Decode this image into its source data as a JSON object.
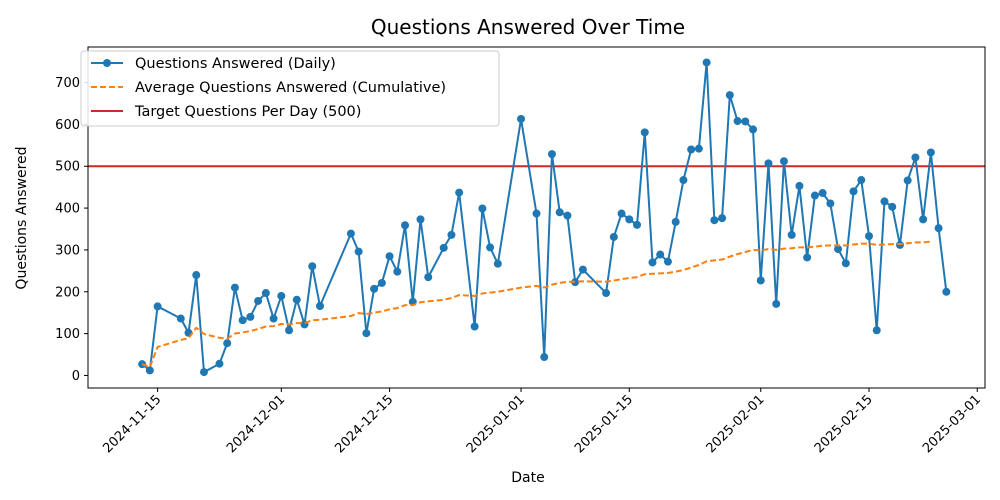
{
  "chart_data": {
    "type": "line",
    "title": "Questions Answered Over Time",
    "xlabel": "Date",
    "ylabel": "Questions Answered",
    "x_range": [
      "2024-11-06",
      "2025-03-02"
    ],
    "ylim": [
      -30,
      785
    ],
    "grid": false,
    "legend_position": "upper-left",
    "x_ticks": [
      "2024-11-15",
      "2024-12-01",
      "2024-12-15",
      "2025-01-01",
      "2025-01-15",
      "2025-02-01",
      "2025-02-15",
      "2025-03-01"
    ],
    "y_ticks": [
      0,
      100,
      200,
      300,
      400,
      500,
      600,
      700
    ],
    "series": [
      {
        "name": "Questions Answered (Daily)",
        "color": "#1f77b4",
        "style": "line-with-markers",
        "points": [
          [
            "2024-11-13",
            27
          ],
          [
            "2024-11-14",
            12
          ],
          [
            "2024-11-15",
            165
          ],
          [
            "2024-11-18",
            136
          ],
          [
            "2024-11-19",
            102
          ],
          [
            "2024-11-20",
            240
          ],
          [
            "2024-11-21",
            8
          ],
          [
            "2024-11-23",
            28
          ],
          [
            "2024-11-24",
            77
          ],
          [
            "2024-11-25",
            210
          ],
          [
            "2024-11-26",
            132
          ],
          [
            "2024-11-27",
            140
          ],
          [
            "2024-11-28",
            178
          ],
          [
            "2024-11-29",
            197
          ],
          [
            "2024-11-30",
            136
          ],
          [
            "2024-12-01",
            190
          ],
          [
            "2024-12-02",
            108
          ],
          [
            "2024-12-03",
            181
          ],
          [
            "2024-12-04",
            122
          ],
          [
            "2024-12-05",
            261
          ],
          [
            "2024-12-06",
            166
          ],
          [
            "2024-12-10",
            339
          ],
          [
            "2024-12-11",
            296
          ],
          [
            "2024-12-12",
            101
          ],
          [
            "2024-12-13",
            207
          ],
          [
            "2024-12-14",
            221
          ],
          [
            "2024-12-15",
            285
          ],
          [
            "2024-12-16",
            248
          ],
          [
            "2024-12-17",
            359
          ],
          [
            "2024-12-18",
            176
          ],
          [
            "2024-12-19",
            373
          ],
          [
            "2024-12-20",
            235
          ],
          [
            "2024-12-22",
            305
          ],
          [
            "2024-12-23",
            336
          ],
          [
            "2024-12-24",
            437
          ],
          [
            "2024-12-26",
            117
          ],
          [
            "2024-12-27",
            399
          ],
          [
            "2024-12-28",
            306
          ],
          [
            "2024-12-29",
            267
          ],
          [
            "2025-01-01",
            613
          ],
          [
            "2025-01-03",
            387
          ],
          [
            "2025-01-04",
            44
          ],
          [
            "2025-01-05",
            529
          ],
          [
            "2025-01-06",
            390
          ],
          [
            "2025-01-07",
            382
          ],
          [
            "2025-01-08",
            223
          ],
          [
            "2025-01-09",
            253
          ],
          [
            "2025-01-12",
            197
          ],
          [
            "2025-01-13",
            331
          ],
          [
            "2025-01-14",
            387
          ],
          [
            "2025-01-15",
            373
          ],
          [
            "2025-01-16",
            360
          ],
          [
            "2025-01-17",
            581
          ],
          [
            "2025-01-18",
            270
          ],
          [
            "2025-01-19",
            289
          ],
          [
            "2025-01-20",
            272
          ],
          [
            "2025-01-21",
            367
          ],
          [
            "2025-01-22",
            467
          ],
          [
            "2025-01-23",
            540
          ],
          [
            "2025-01-24",
            542
          ],
          [
            "2025-01-25",
            748
          ],
          [
            "2025-01-26",
            371
          ],
          [
            "2025-01-27",
            376
          ],
          [
            "2025-01-28",
            670
          ],
          [
            "2025-01-29",
            608
          ],
          [
            "2025-01-30",
            607
          ],
          [
            "2025-01-31",
            588
          ],
          [
            "2025-02-01",
            227
          ],
          [
            "2025-02-02",
            507
          ],
          [
            "2025-02-03",
            171
          ],
          [
            "2025-02-04",
            512
          ],
          [
            "2025-02-05",
            336
          ],
          [
            "2025-02-06",
            453
          ],
          [
            "2025-02-07",
            282
          ],
          [
            "2025-02-08",
            430
          ],
          [
            "2025-02-09",
            436
          ],
          [
            "2025-02-10",
            411
          ],
          [
            "2025-02-11",
            302
          ],
          [
            "2025-02-12",
            268
          ],
          [
            "2025-02-13",
            440
          ],
          [
            "2025-02-14",
            467
          ],
          [
            "2025-02-15",
            333
          ],
          [
            "2025-02-16",
            108
          ],
          [
            "2025-02-17",
            416
          ],
          [
            "2025-02-18",
            403
          ],
          [
            "2025-02-19",
            312
          ],
          [
            "2025-02-20",
            466
          ],
          [
            "2025-02-21",
            521
          ],
          [
            "2025-02-22",
            373
          ],
          [
            "2025-02-23",
            533
          ],
          [
            "2025-02-24",
            352
          ],
          [
            "2025-02-25",
            200
          ]
        ]
      },
      {
        "name": "Average Questions Answered (Cumulative)",
        "color": "#ff7f0e",
        "style": "dashed",
        "points": [
          [
            "2024-11-13",
            27
          ],
          [
            "2024-11-14",
            20
          ],
          [
            "2024-11-15",
            68
          ],
          [
            "2024-11-18",
            85
          ],
          [
            "2024-11-19",
            89
          ],
          [
            "2024-11-20",
            114
          ],
          [
            "2024-11-21",
            99
          ],
          [
            "2024-11-23",
            90
          ],
          [
            "2024-11-24",
            88
          ],
          [
            "2024-11-25",
            100
          ],
          [
            "2024-11-26",
            103
          ],
          [
            "2024-11-27",
            106
          ],
          [
            "2024-11-28",
            111
          ],
          [
            "2024-11-29",
            117
          ],
          [
            "2024-11-30",
            118
          ],
          [
            "2024-12-01",
            123
          ],
          [
            "2024-12-02",
            122
          ],
          [
            "2024-12-03",
            125
          ],
          [
            "2024-12-04",
            125
          ],
          [
            "2024-12-05",
            132
          ],
          [
            "2024-12-06",
            133
          ],
          [
            "2024-12-10",
            142
          ],
          [
            "2024-12-11",
            149
          ],
          [
            "2024-12-12",
            147
          ],
          [
            "2024-12-13",
            150
          ],
          [
            "2024-12-14",
            153
          ],
          [
            "2024-12-15",
            158
          ],
          [
            "2024-12-16",
            161
          ],
          [
            "2024-12-17",
            168
          ],
          [
            "2024-12-18",
            168
          ],
          [
            "2024-12-19",
            175
          ],
          [
            "2024-12-20",
            177
          ],
          [
            "2024-12-22",
            181
          ],
          [
            "2024-12-23",
            185
          ],
          [
            "2024-12-24",
            192
          ],
          [
            "2024-12-26",
            190
          ],
          [
            "2024-12-27",
            196
          ],
          [
            "2024-12-28",
            198
          ],
          [
            "2024-12-29",
            200
          ],
          [
            "2025-01-01",
            210
          ],
          [
            "2025-01-03",
            214
          ],
          [
            "2025-01-04",
            210
          ],
          [
            "2025-01-05",
            217
          ],
          [
            "2025-01-06",
            221
          ],
          [
            "2025-01-07",
            224
          ],
          [
            "2025-01-08",
            224
          ],
          [
            "2025-01-09",
            225
          ],
          [
            "2025-01-12",
            224
          ],
          [
            "2025-01-13",
            227
          ],
          [
            "2025-01-14",
            230
          ],
          [
            "2025-01-15",
            233
          ],
          [
            "2025-01-16",
            235
          ],
          [
            "2025-01-17",
            242
          ],
          [
            "2025-01-18",
            243
          ],
          [
            "2025-01-19",
            244
          ],
          [
            "2025-01-20",
            245
          ],
          [
            "2025-01-21",
            248
          ],
          [
            "2025-01-22",
            252
          ],
          [
            "2025-01-23",
            258
          ],
          [
            "2025-01-24",
            264
          ],
          [
            "2025-01-25",
            273
          ],
          [
            "2025-01-26",
            275
          ],
          [
            "2025-01-27",
            277
          ],
          [
            "2025-01-28",
            284
          ],
          [
            "2025-01-29",
            290
          ],
          [
            "2025-01-30",
            295
          ],
          [
            "2025-01-31",
            300
          ],
          [
            "2025-02-01",
            299
          ],
          [
            "2025-02-02",
            302
          ],
          [
            "2025-02-03",
            300
          ],
          [
            "2025-02-04",
            303
          ],
          [
            "2025-02-05",
            304
          ],
          [
            "2025-02-06",
            306
          ],
          [
            "2025-02-07",
            306
          ],
          [
            "2025-02-08",
            308
          ],
          [
            "2025-02-09",
            310
          ],
          [
            "2025-02-10",
            311
          ],
          [
            "2025-02-11",
            311
          ],
          [
            "2025-02-12",
            311
          ],
          [
            "2025-02-13",
            313
          ],
          [
            "2025-02-14",
            315
          ],
          [
            "2025-02-15",
            315
          ],
          [
            "2025-02-16",
            312
          ],
          [
            "2025-02-17",
            313
          ],
          [
            "2025-02-18",
            314
          ],
          [
            "2025-02-19",
            314
          ],
          [
            "2025-02-20",
            316
          ],
          [
            "2025-02-21",
            318
          ],
          [
            "2025-02-22",
            318
          ],
          [
            "2025-02-23",
            320
          ]
        ]
      }
    ],
    "reference_lines": [
      {
        "name": "Target Questions Per Day (500)",
        "y": 500,
        "color": "#d62728"
      }
    ]
  }
}
